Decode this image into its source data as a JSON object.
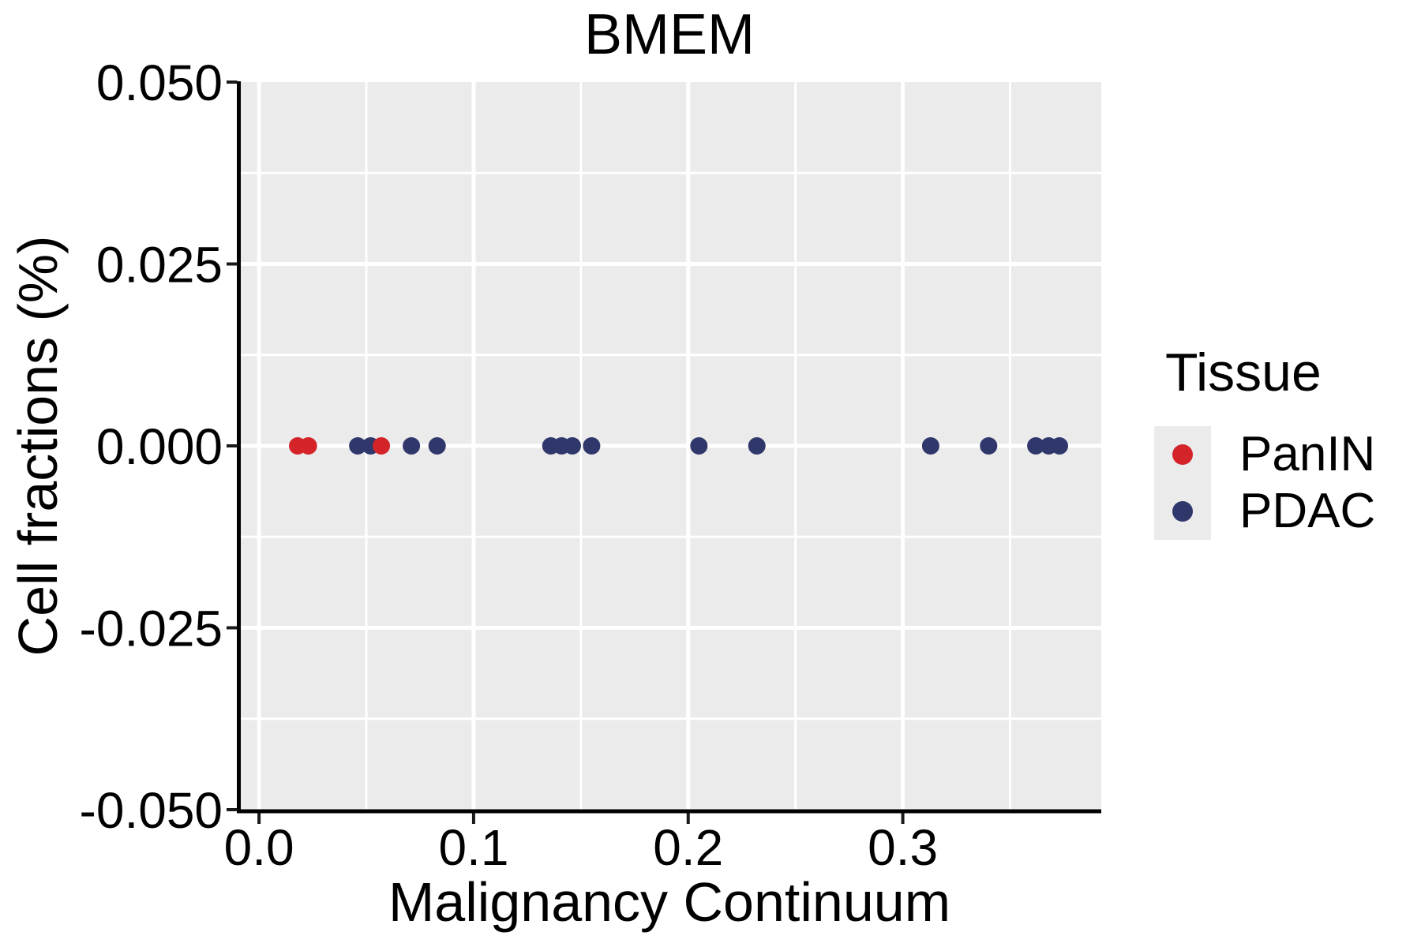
{
  "title": "BMEM",
  "legend": {
    "title": "Tissue",
    "items": [
      {
        "label": "PanIN",
        "color": "#D42329",
        "key_bg": "#EBEBEB"
      },
      {
        "label": "PDAC",
        "color": "#2F376B",
        "key_bg": "#EBEBEB"
      }
    ]
  },
  "colors": {
    "panel_bg": "#EBEBEB",
    "gridline": "#FFFFFF",
    "axis_line": "#000000",
    "tick": "#1A1A1A",
    "text": "#000000",
    "panin": "#D42329",
    "pdac": "#2F376B"
  },
  "chart_data": {
    "type": "scatter",
    "title": "BMEM",
    "xlabel": "Malignancy Continuum",
    "ylabel": "Cell fractions (%)",
    "xlim": [
      -0.0085,
      0.3925
    ],
    "ylim": [
      -0.05,
      0.05
    ],
    "x_ticks": [
      0.0,
      0.1,
      0.2,
      0.3
    ],
    "x_tick_labels": [
      "0.0",
      "0.1",
      "0.2",
      "0.3"
    ],
    "x_minor": [
      0.05,
      0.15,
      0.25,
      0.35
    ],
    "y_ticks": [
      0.05,
      0.025,
      0.0,
      -0.025,
      -0.05
    ],
    "y_tick_labels": [
      "0.050",
      "0.025",
      "0.000",
      "-0.025",
      "-0.050"
    ],
    "y_minor": [
      0.0375,
      0.0125,
      -0.0125,
      -0.0375
    ],
    "grid": true,
    "legend_position": "right",
    "legend_title": "Tissue",
    "series": [
      {
        "name": "PDAC",
        "color": "#2F376B",
        "x": [
          0.046,
          0.052,
          0.071,
          0.083,
          0.136,
          0.141,
          0.146,
          0.155,
          0.205,
          0.232,
          0.313,
          0.34,
          0.362,
          0.368,
          0.373
        ],
        "y": [
          0.0,
          0.0,
          0.0,
          0.0,
          0.0,
          0.0,
          0.0,
          0.0,
          0.0,
          0.0,
          0.0,
          0.0,
          0.0,
          0.0,
          0.0
        ]
      },
      {
        "name": "PanIN",
        "color": "#D42329",
        "x": [
          0.018,
          0.023,
          0.057
        ],
        "y": [
          0.0,
          0.0,
          0.0
        ]
      }
    ]
  }
}
